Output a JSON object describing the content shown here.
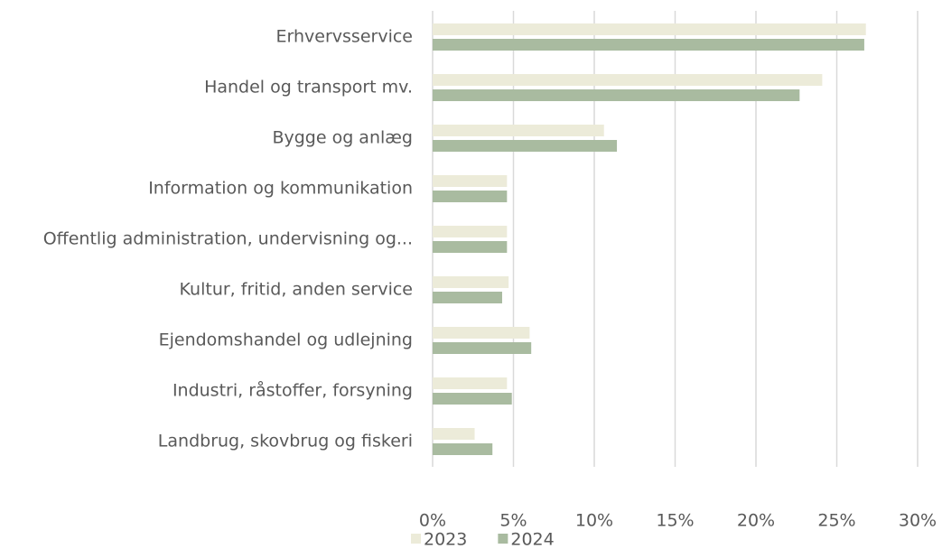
{
  "chart_data": {
    "type": "hbar",
    "categories": [
      "Erhvervsservice",
      "Handel og transport mv.",
      "Bygge og anlæg",
      "Information og kommunikation",
      "Offentlig administration, undervisning og...",
      "Kultur, fritid, anden service",
      "Ejendomshandel og udlejning",
      "Industri, råstoffer, forsyning",
      "Landbrug, skovbrug og fiskeri"
    ],
    "series": [
      {
        "name": "2023",
        "color": "#ecebd9",
        "values": [
          26.8,
          24.1,
          10.6,
          4.6,
          4.6,
          4.7,
          6.0,
          4.6,
          2.6
        ]
      },
      {
        "name": "2024",
        "color": "#a9bba0",
        "values": [
          26.7,
          22.7,
          11.4,
          4.6,
          4.6,
          4.3,
          6.1,
          4.9,
          3.7
        ]
      }
    ],
    "xlim": [
      0,
      30
    ],
    "xticks": [
      {
        "value": 0,
        "label": "0%"
      },
      {
        "value": 5,
        "label": "5%"
      },
      {
        "value": 10,
        "label": "10%"
      },
      {
        "value": 15,
        "label": "15%"
      },
      {
        "value": 20,
        "label": "20%"
      },
      {
        "value": 25,
        "label": "25%"
      },
      {
        "value": 30,
        "label": "30%"
      }
    ],
    "grid": true,
    "legend": "bottom"
  }
}
